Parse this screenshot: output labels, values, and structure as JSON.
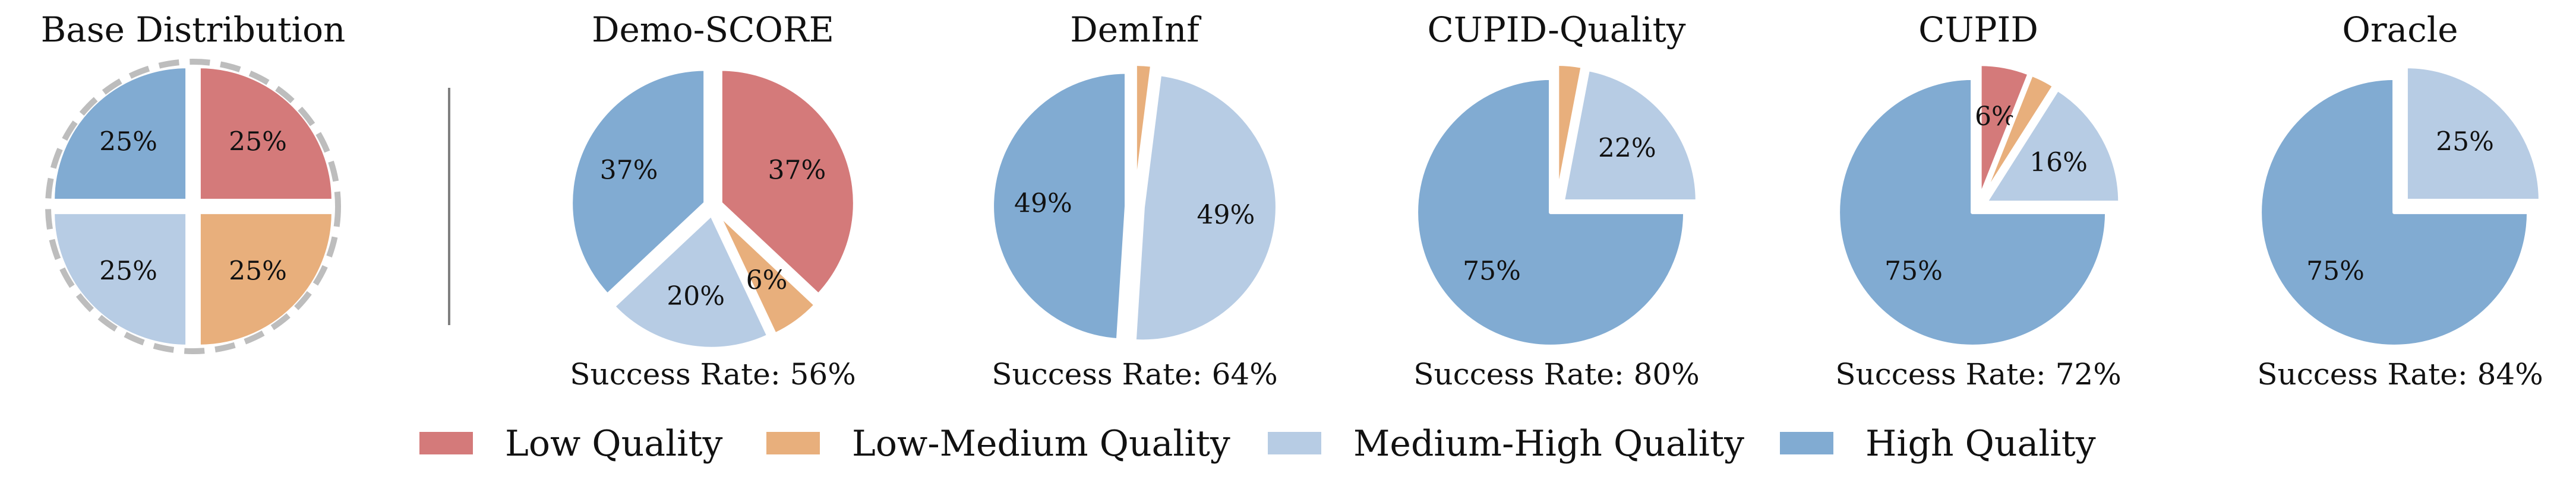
{
  "colors": {
    "low": "#d47a7a",
    "low_medium": "#e8af7c",
    "medium_high": "#b7cce4",
    "high": "#81abd2",
    "dashed_ring": "#bdbdbd",
    "divider": "#7f7f7f"
  },
  "legend": {
    "placement": "bottom-center",
    "items": [
      {
        "label": "Low Quality",
        "color_key": "low"
      },
      {
        "label": "Low-Medium Quality",
        "color_key": "low_medium"
      },
      {
        "label": "Medium-High Quality",
        "color_key": "medium_high"
      },
      {
        "label": "High Quality",
        "color_key": "high"
      }
    ]
  },
  "chart_data": [
    {
      "type": "pie",
      "title": "Base Distribution",
      "success_rate": "",
      "dashed_outline": true,
      "slices": [
        {
          "category": "Low Quality",
          "color_key": "low",
          "value": 25,
          "label": "25%"
        },
        {
          "category": "Low-Medium Quality",
          "color_key": "low_medium",
          "value": 25,
          "label": "25%"
        },
        {
          "category": "Medium-High Quality",
          "color_key": "medium_high",
          "value": 25,
          "label": "25%"
        },
        {
          "category": "High Quality",
          "color_key": "high",
          "value": 25,
          "label": "25%"
        }
      ]
    },
    {
      "type": "pie",
      "title": "Demo-SCORE",
      "success_rate": "Success Rate: 56%",
      "slices": [
        {
          "category": "Low Quality",
          "color_key": "low",
          "value": 37,
          "label": "37%"
        },
        {
          "category": "Low-Medium Quality",
          "color_key": "low_medium",
          "value": 6,
          "label": "6%"
        },
        {
          "category": "Medium-High Quality",
          "color_key": "medium_high",
          "value": 20,
          "label": "20%"
        },
        {
          "category": "High Quality",
          "color_key": "high",
          "value": 37,
          "label": "37%"
        }
      ]
    },
    {
      "type": "pie",
      "title": "DemInf",
      "success_rate": "Success Rate: 64%",
      "slices": [
        {
          "category": "Low Quality",
          "color_key": "low",
          "value": 0,
          "label": ""
        },
        {
          "category": "Low-Medium Quality",
          "color_key": "low_medium",
          "value": 2,
          "label": ""
        },
        {
          "category": "Medium-High Quality",
          "color_key": "medium_high",
          "value": 49,
          "label": "49%"
        },
        {
          "category": "High Quality",
          "color_key": "high",
          "value": 49,
          "label": "49%"
        }
      ]
    },
    {
      "type": "pie",
      "title": "CUPID-Quality",
      "success_rate": "Success Rate: 80%",
      "slices": [
        {
          "category": "Low Quality",
          "color_key": "low",
          "value": 0,
          "label": ""
        },
        {
          "category": "Low-Medium Quality",
          "color_key": "low_medium",
          "value": 3,
          "label": ""
        },
        {
          "category": "Medium-High Quality",
          "color_key": "medium_high",
          "value": 22,
          "label": "22%"
        },
        {
          "category": "High Quality",
          "color_key": "high",
          "value": 75,
          "label": "75%"
        }
      ]
    },
    {
      "type": "pie",
      "title": "CUPID",
      "success_rate": "Success Rate: 72%",
      "slices": [
        {
          "category": "Low Quality",
          "color_key": "low",
          "value": 6,
          "label": "6%"
        },
        {
          "category": "Low-Medium Quality",
          "color_key": "low_medium",
          "value": 3,
          "label": ""
        },
        {
          "category": "Medium-High Quality",
          "color_key": "medium_high",
          "value": 16,
          "label": "16%"
        },
        {
          "category": "High Quality",
          "color_key": "high",
          "value": 75,
          "label": "75%"
        }
      ]
    },
    {
      "type": "pie",
      "title": "Oracle",
      "success_rate": "Success Rate: 84%",
      "slices": [
        {
          "category": "Low Quality",
          "color_key": "low",
          "value": 0,
          "label": ""
        },
        {
          "category": "Low-Medium Quality",
          "color_key": "low_medium",
          "value": 0,
          "label": ""
        },
        {
          "category": "Medium-High Quality",
          "color_key": "medium_high",
          "value": 25,
          "label": "25%"
        },
        {
          "category": "High Quality",
          "color_key": "high",
          "value": 75,
          "label": "75%"
        }
      ]
    }
  ]
}
